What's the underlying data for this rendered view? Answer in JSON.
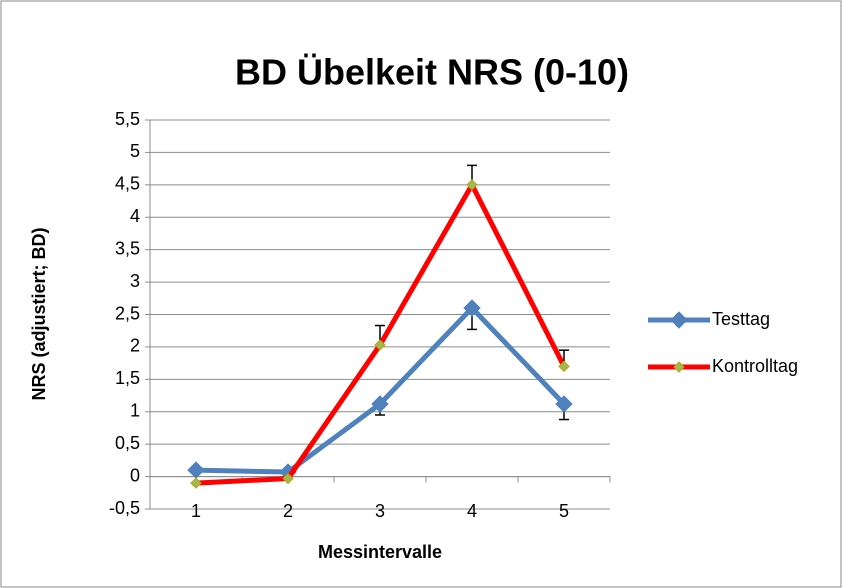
{
  "chart_data": {
    "type": "line",
    "title": "BD Übelkeit NRS (0-10)",
    "x_label": "Messintervalle",
    "y_label": "NRS (adjustiert; BD)",
    "categories": [
      "1",
      "2",
      "3",
      "4",
      "5"
    ],
    "series": [
      {
        "name": "Testtag",
        "color": "#4f81bd",
        "marker": "diamond",
        "values": [
          0.1,
          0.07,
          1.12,
          2.6,
          1.12
        ],
        "errors": [
          null,
          null,
          0.17,
          0.33,
          0.24
        ],
        "error_direction": "minus"
      },
      {
        "name": "Kontrolltag",
        "color": "#ff0000",
        "marker": "diamond-small",
        "values": [
          -0.1,
          -0.03,
          2.03,
          4.5,
          1.7
        ],
        "errors": [
          null,
          null,
          0.3,
          0.3,
          0.25
        ],
        "error_direction": "plus"
      }
    ],
    "ylim": [
      -0.5,
      5.5
    ],
    "yticks": [
      {
        "value": -0.5,
        "label": "-0,5"
      },
      0,
      {
        "value": 0.5,
        "label": "0,5"
      },
      1,
      {
        "value": 1.5,
        "label": "1,5"
      },
      2,
      {
        "value": 2.5,
        "label": "2,5"
      },
      3,
      {
        "value": 3.5,
        "label": "3,5"
      },
      4,
      {
        "value": 4.5,
        "label": "4,5"
      },
      5,
      {
        "value": 5.5,
        "label": "5,5"
      }
    ],
    "grid": true,
    "legend": "right"
  }
}
